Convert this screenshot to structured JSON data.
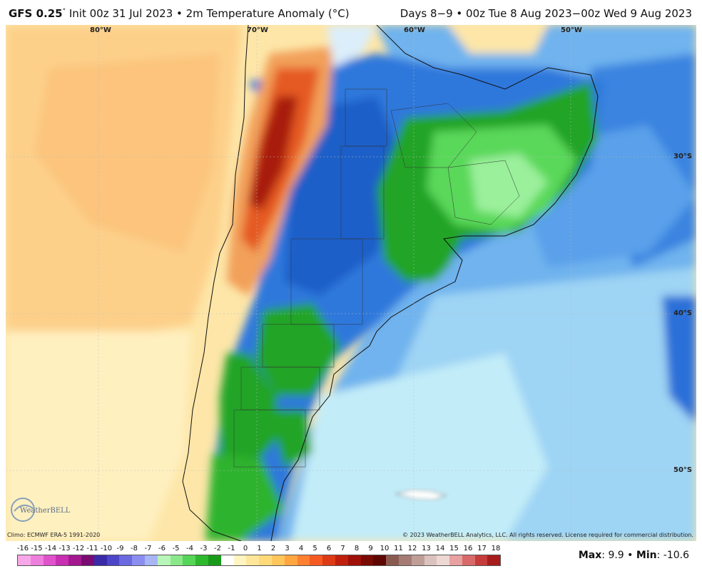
{
  "header": {
    "model": "GFS 0.25",
    "init_text": "Init 00z 31 Jul 2023 • 2m Temperature Anomaly (°C)",
    "valid_text": "Days 8−9 • 00z Tue 8 Aug 2023−00z Wed 9 Aug 2023"
  },
  "map": {
    "lon_labels": [
      "80°W",
      "70°W",
      "60°W",
      "50°W"
    ],
    "lat_labels": [
      "30°S",
      "40°S",
      "50°S"
    ]
  },
  "footer": {
    "climo": "Climo: ECMWF ERA-5 1991-2020",
    "copyright": "© 2023 WeatherBELL Analytics, LLC. All rights reserved. License required for commercial distribution.",
    "logo_text": "WeatherBELL"
  },
  "colorbar": {
    "labels": [
      "-16",
      "-15",
      "-14",
      "-13",
      "-12",
      "-11",
      "-10",
      "-9",
      "-8",
      "-7",
      "-6",
      "-5",
      "-4",
      "-3",
      "-2",
      "-1",
      "0",
      "1",
      "2",
      "3",
      "4",
      "5",
      "6",
      "7",
      "8",
      "9",
      "10",
      "11",
      "12",
      "13",
      "14",
      "15",
      "16",
      "17",
      "18"
    ],
    "colors": [
      "#f7a8e8",
      "#ee7fdc",
      "#e052cc",
      "#c82fb2",
      "#a3178f",
      "#7a0b72",
      "#3a2aa8",
      "#4c45c9",
      "#6a69e0",
      "#8b8ef0",
      "#a8b6f5",
      "#b8f5b8",
      "#8ae88a",
      "#56d656",
      "#2eb82e",
      "#1a9a1a",
      "#ffffff",
      "#fff4c2",
      "#ffe79a",
      "#ffd97a",
      "#ffc65c",
      "#ffa640",
      "#ff8030",
      "#f45a22",
      "#de3a16",
      "#c11f0e",
      "#9e1008",
      "#7a0a04",
      "#5e0602",
      "#8a5a50",
      "#a47c74",
      "#c09e98",
      "#dcc2be",
      "#eed8d4",
      "#e8a0a0",
      "#d86a6a",
      "#c63c3c",
      "#a81c1c"
    ],
    "max_label": "Max",
    "max_value": "9.9",
    "min_label": "Min",
    "min_value": "-10.6"
  }
}
